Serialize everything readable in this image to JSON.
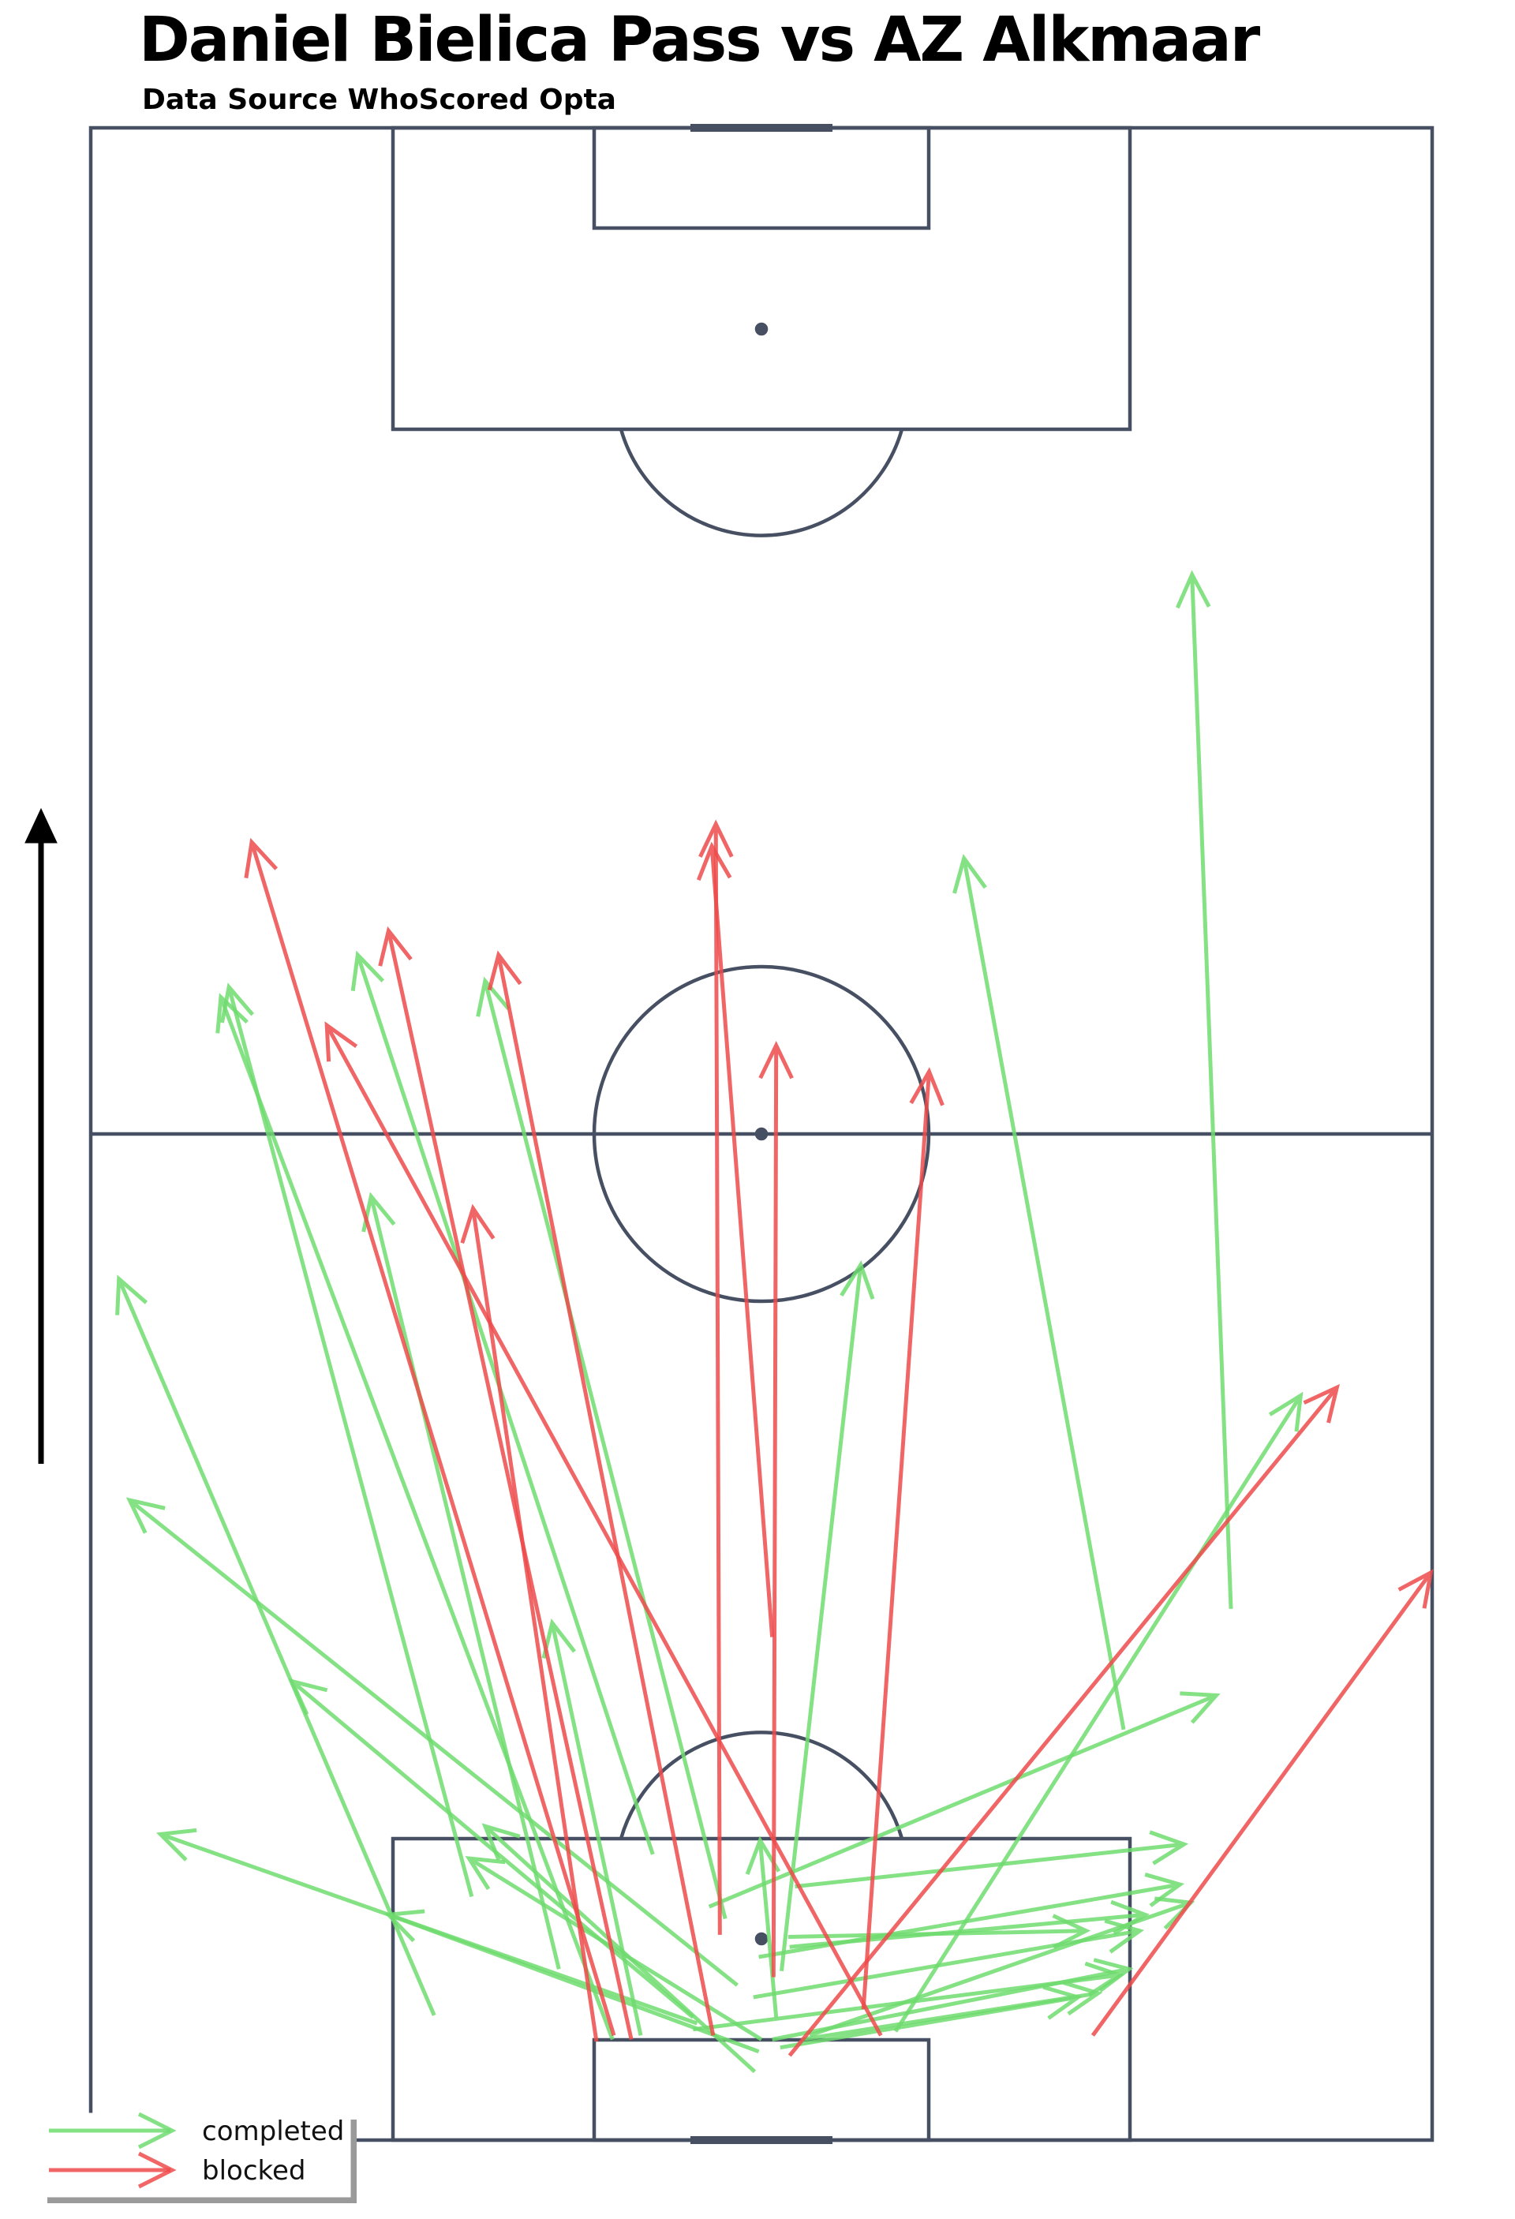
{
  "header": {
    "title": "Daniel Bielica Pass vs AZ Alkmaar",
    "subtitle": "Data Source  WhoScored Opta"
  },
  "colors": {
    "background": "#ffffff",
    "pitch_lines": "#475063",
    "completed": "#6fdc6f",
    "blocked": "#ee4b4b",
    "direction_arrow": "#000000"
  },
  "chart_data": {
    "type": "scatter",
    "title": "Daniel Bielica Pass vs AZ Alkmaar",
    "subtitle": "Data Source  WhoScored Opta",
    "xlabel": "",
    "ylabel": "",
    "xlim": [
      0,
      100
    ],
    "ylim": [
      0,
      100
    ],
    "grid": false,
    "legend_position": "bottom-left",
    "legend": [
      {
        "name": "completed",
        "color": "#6fdc6f"
      },
      {
        "name": "blocked",
        "color": "#ee4b4b"
      }
    ],
    "attack_direction": "up",
    "series": [
      {
        "name": "completed",
        "color": "#6fdc6f",
        "passes": [
          {
            "x": 85.0,
            "y": 26.4,
            "end_x": 82.1,
            "end_y": 77.8
          },
          {
            "x": 77.0,
            "y": 20.4,
            "end_x": 65.1,
            "end_y": 63.7
          },
          {
            "x": 51.5,
            "y": 8.4,
            "end_x": 57.4,
            "end_y": 43.5
          },
          {
            "x": 47.3,
            "y": 11.0,
            "end_x": 29.4,
            "end_y": 57.6
          },
          {
            "x": 34.9,
            "y": 8.5,
            "end_x": 20.9,
            "end_y": 46.9
          },
          {
            "x": 41.9,
            "y": 14.2,
            "end_x": 19.9,
            "end_y": 58.9
          },
          {
            "x": 28.4,
            "y": 12.1,
            "end_x": 10.3,
            "end_y": 57.3
          },
          {
            "x": 25.6,
            "y": 6.2,
            "end_x": 2.1,
            "end_y": 42.8
          },
          {
            "x": 48.2,
            "y": 7.7,
            "end_x": 2.9,
            "end_y": 31.8
          },
          {
            "x": 44.9,
            "y": 6.1,
            "end_x": 15.0,
            "end_y": 22.8
          },
          {
            "x": 45.2,
            "y": 5.8,
            "end_x": 5.2,
            "end_y": 15.2
          },
          {
            "x": 49.8,
            "y": 4.4,
            "end_x": 22.2,
            "end_y": 11.2
          },
          {
            "x": 50.0,
            "y": 5.0,
            "end_x": 28.2,
            "end_y": 14.0
          },
          {
            "x": 49.5,
            "y": 3.4,
            "end_x": 29.4,
            "end_y": 15.6
          },
          {
            "x": 41.0,
            "y": 5.2,
            "end_x": 34.4,
            "end_y": 25.7
          },
          {
            "x": 38.9,
            "y": 5.0,
            "end_x": 9.7,
            "end_y": 56.8
          },
          {
            "x": 51.1,
            "y": 6.1,
            "end_x": 49.9,
            "end_y": 14.9
          },
          {
            "x": 60.0,
            "y": 5.4,
            "end_x": 90.2,
            "end_y": 37.0
          },
          {
            "x": 46.1,
            "y": 11.6,
            "end_x": 83.9,
            "end_y": 22.1
          },
          {
            "x": 52.5,
            "y": 12.6,
            "end_x": 81.5,
            "end_y": 14.7
          },
          {
            "x": 49.8,
            "y": 9.1,
            "end_x": 81.2,
            "end_y": 12.7
          },
          {
            "x": 52.0,
            "y": 10.1,
            "end_x": 74.2,
            "end_y": 10.4
          },
          {
            "x": 52.1,
            "y": 9.6,
            "end_x": 78.6,
            "end_y": 11.2
          },
          {
            "x": 49.4,
            "y": 7.1,
            "end_x": 78.2,
            "end_y": 10.4
          },
          {
            "x": 44.9,
            "y": 5.5,
            "end_x": 76.7,
            "end_y": 8.2
          },
          {
            "x": 50.8,
            "y": 5.0,
            "end_x": 77.4,
            "end_y": 8.5
          },
          {
            "x": 53.0,
            "y": 5.0,
            "end_x": 75.1,
            "end_y": 7.3
          },
          {
            "x": 51.4,
            "y": 4.6,
            "end_x": 73.6,
            "end_y": 7.1
          },
          {
            "x": 53.6,
            "y": 5.2,
            "end_x": 82.0,
            "end_y": 11.8
          }
        ]
      },
      {
        "name": "blocked",
        "color": "#ee4b4b",
        "passes": [
          {
            "x": 50.9,
            "y": 8.1,
            "end_x": 51.1,
            "end_y": 54.4
          },
          {
            "x": 46.9,
            "y": 10.2,
            "end_x": 46.6,
            "end_y": 65.4
          },
          {
            "x": 50.8,
            "y": 25.0,
            "end_x": 46.3,
            "end_y": 64.3
          },
          {
            "x": 37.7,
            "y": 4.9,
            "end_x": 28.5,
            "end_y": 46.3
          },
          {
            "x": 46.4,
            "y": 5.2,
            "end_x": 30.4,
            "end_y": 58.9
          },
          {
            "x": 40.3,
            "y": 5.0,
            "end_x": 22.2,
            "end_y": 60.1
          },
          {
            "x": 39.0,
            "y": 5.2,
            "end_x": 12.0,
            "end_y": 64.5
          },
          {
            "x": 58.9,
            "y": 5.2,
            "end_x": 17.6,
            "end_y": 55.4
          },
          {
            "x": 57.6,
            "y": 6.5,
            "end_x": 62.5,
            "end_y": 53.1
          },
          {
            "x": 52.1,
            "y": 4.2,
            "end_x": 92.9,
            "end_y": 37.4
          },
          {
            "x": 74.7,
            "y": 5.2,
            "end_x": 99.9,
            "end_y": 28.2
          }
        ]
      }
    ]
  },
  "legend_labels": {
    "completed": "completed",
    "blocked": "blocked"
  }
}
